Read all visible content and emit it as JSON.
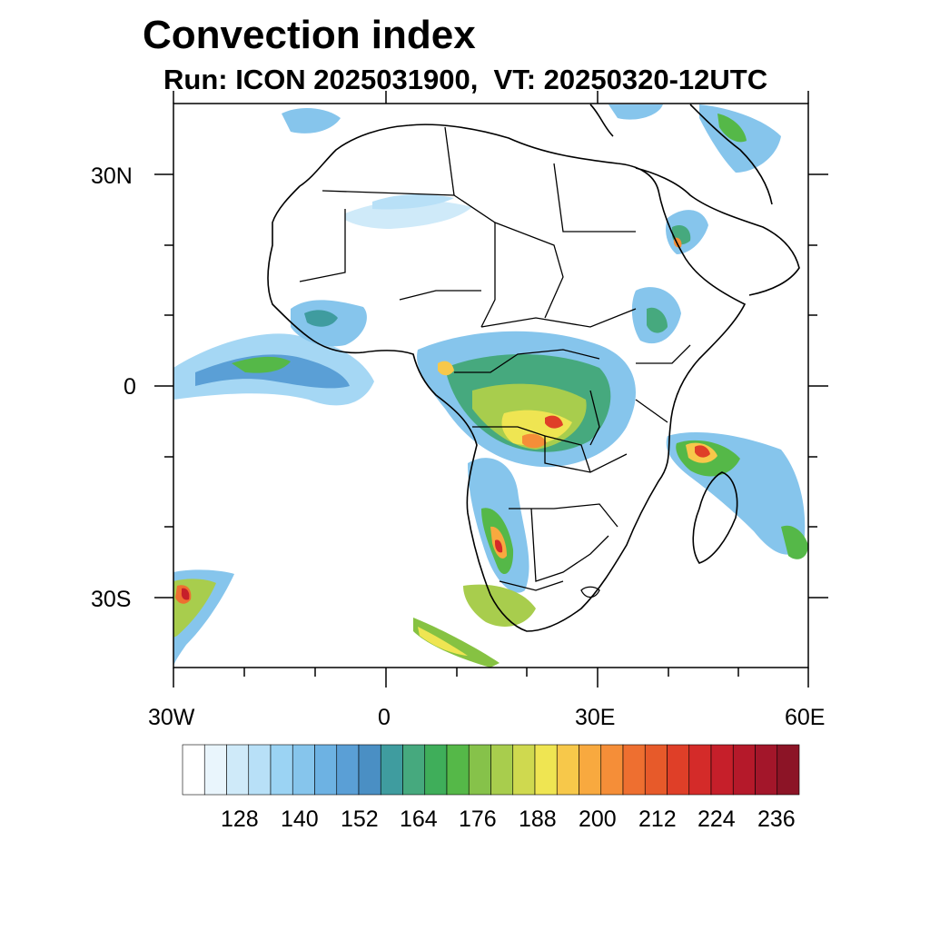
{
  "title": "Convection index",
  "subtitle": "Run: ICON 2025031900,  VT: 20250320-12UTC",
  "axes": {
    "lon_ticks": [
      "30W",
      "0",
      "30E",
      "60E"
    ],
    "lat_ticks": [
      "30N",
      "0",
      "30S"
    ],
    "lon_range": [
      -30,
      60
    ],
    "lat_range": [
      -40,
      40
    ]
  },
  "colorbar": {
    "labels": [
      "128",
      "140",
      "152",
      "164",
      "176",
      "188",
      "200",
      "212",
      "224",
      "236"
    ],
    "colors": [
      "#ffffff",
      "#e9f5fc",
      "#cfeaf9",
      "#b8e0f7",
      "#9bd3f3",
      "#86c5ec",
      "#6db2e3",
      "#5a9fd6",
      "#4a8fc4",
      "#3f9c9f",
      "#46a97e",
      "#3fae5a",
      "#55b848",
      "#86c24a",
      "#a8cd4d",
      "#cfd94f",
      "#efe552",
      "#f7c84a",
      "#f8a93f",
      "#f58e38",
      "#ee6f30",
      "#e75a2a",
      "#df3f28",
      "#d42b29",
      "#c61f2a",
      "#b5192a",
      "#a3162a",
      "#8c1426"
    ]
  },
  "chart_data": {
    "type": "heatmap",
    "title": "Convection index",
    "subtitle": "Run: ICON 2025031900,  VT: 20250320-12UTC",
    "x_ticks": [
      "30W",
      "0",
      "30E",
      "60E"
    ],
    "y_ticks": [
      "30N",
      "0",
      "30S"
    ],
    "xlim": [
      -30,
      60
    ],
    "ylim": [
      -40,
      40
    ],
    "colorbar_ticks": [
      128,
      140,
      152,
      164,
      176,
      188,
      200,
      212,
      224,
      236
    ],
    "regions": [
      {
        "lon": -22,
        "lat": 4,
        "value": 160
      },
      {
        "lon": -8,
        "lat": 9,
        "value": 150
      },
      {
        "lon": 23,
        "lat": -3,
        "value": 185
      },
      {
        "lon": 20,
        "lat": -8,
        "value": 200
      },
      {
        "lon": 30,
        "lat": -4,
        "value": 190
      },
      {
        "lon": 45,
        "lat": -10,
        "value": 215
      },
      {
        "lon": 16,
        "lat": -24,
        "value": 190
      },
      {
        "lon": -28,
        "lat": -32,
        "value": 200
      },
      {
        "lon": 41,
        "lat": 22,
        "value": 180
      },
      {
        "lon": 38,
        "lat": 8,
        "value": 165
      },
      {
        "lon": 35,
        "lat": 38,
        "value": 150
      },
      {
        "lon": 9,
        "lat": -35,
        "value": 170
      }
    ]
  }
}
